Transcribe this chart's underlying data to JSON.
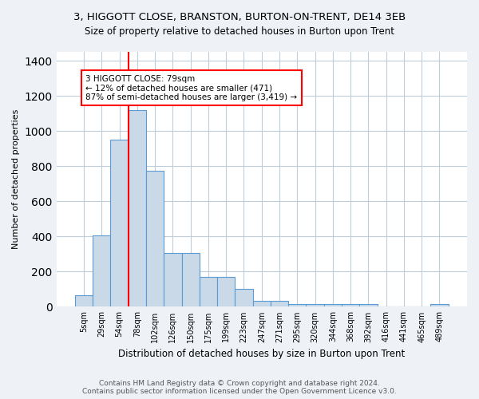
{
  "title": "3, HIGGOTT CLOSE, BRANSTON, BURTON-ON-TRENT, DE14 3EB",
  "subtitle": "Size of property relative to detached houses in Burton upon Trent",
  "xlabel": "Distribution of detached houses by size in Burton upon Trent",
  "ylabel": "Number of detached properties",
  "bin_labels": [
    "5sqm",
    "29sqm",
    "54sqm",
    "78sqm",
    "102sqm",
    "126sqm",
    "150sqm",
    "175sqm",
    "199sqm",
    "223sqm",
    "247sqm",
    "271sqm",
    "295sqm",
    "320sqm",
    "344sqm",
    "368sqm",
    "392sqm",
    "416sqm",
    "441sqm",
    "465sqm",
    "489sqm"
  ],
  "bar_heights": [
    65,
    405,
    950,
    1120,
    775,
    305,
    305,
    170,
    170,
    100,
    35,
    35,
    15,
    15,
    15,
    15,
    15,
    0,
    0,
    0,
    15
  ],
  "bar_color": "#c9d9e8",
  "bar_edge_color": "#5b9bd5",
  "annotation_text": "3 HIGGOTT CLOSE: 79sqm\n← 12% of detached houses are smaller (471)\n87% of semi-detached houses are larger (3,419) →",
  "annotation_box_color": "white",
  "annotation_box_edge_color": "red",
  "vline_color": "red",
  "vline_x": 2.5,
  "ylim": [
    0,
    1450
  ],
  "footer1": "Contains HM Land Registry data © Crown copyright and database right 2024.",
  "footer2": "Contains public sector information licensed under the Open Government Licence v3.0.",
  "bg_color": "#eef2f7",
  "plot_bg_color": "white",
  "grid_color": "#c0ccd8"
}
